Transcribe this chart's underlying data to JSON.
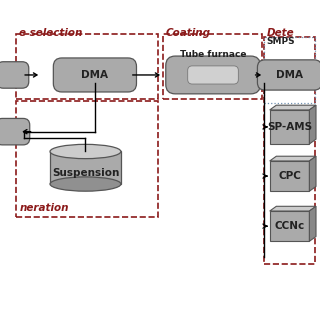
{
  "background_color": "#ffffff",
  "gray": "#aaaaaa",
  "gray_light": "#cccccc",
  "gray_dark": "#888888",
  "gray_mid": "#b0b0b0",
  "red_dark": "#8B1A1A",
  "blue_dot": "#7090b0",
  "arrow_color": "#000000",
  "label_sel": "e selection",
  "label_coat": "Coating",
  "label_det": "Dete",
  "label_smps": "SMPS",
  "label_gen": "neration",
  "fontsize_section": 7.5,
  "fontsize_component": 7.5,
  "fontsize_small": 6.5
}
